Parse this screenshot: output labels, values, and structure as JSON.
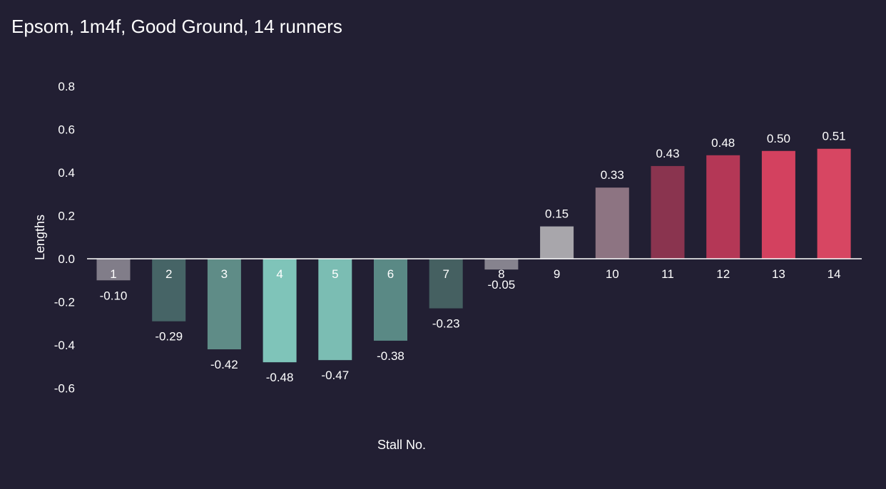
{
  "chart_data": {
    "type": "bar",
    "title": "Epsom, 1m4f, Good Ground, 14 runners",
    "xlabel": "Stall No.",
    "ylabel": "Lengths",
    "categories": [
      "1",
      "2",
      "3",
      "4",
      "5",
      "6",
      "7",
      "8",
      "9",
      "10",
      "11",
      "12",
      "13",
      "14"
    ],
    "values": [
      -0.1,
      -0.29,
      -0.42,
      -0.48,
      -0.47,
      -0.38,
      -0.23,
      -0.05,
      0.15,
      0.33,
      0.43,
      0.48,
      0.5,
      0.51
    ],
    "value_labels": [
      "-0.10",
      "-0.29",
      "-0.42",
      "-0.48",
      "-0.47",
      "-0.38",
      "-0.23",
      "-0.05",
      "0.15",
      "0.33",
      "0.43",
      "0.48",
      "0.50",
      "0.51"
    ],
    "bar_colors": [
      "#817d89",
      "#466466",
      "#5f8c87",
      "#7fc4b9",
      "#7bbdb3",
      "#5a8985",
      "#456061",
      "#86838e",
      "#a8a6ab",
      "#8d7482",
      "#8a344f",
      "#b43756",
      "#d3415f",
      "#d74662"
    ],
    "yticks": [
      "0.8",
      "0.6",
      "0.4",
      "0.2",
      "0.0",
      "-0.2",
      "-0.4",
      "-0.6"
    ],
    "ytick_values": [
      0.8,
      0.6,
      0.4,
      0.2,
      0.0,
      -0.2,
      -0.4,
      -0.6
    ],
    "ylim": [
      -0.65,
      0.85
    ],
    "grid": false,
    "legend": "none",
    "colors": {
      "background": "#221f33",
      "text": "#ffffff",
      "zero_line": "#ffffff"
    }
  }
}
